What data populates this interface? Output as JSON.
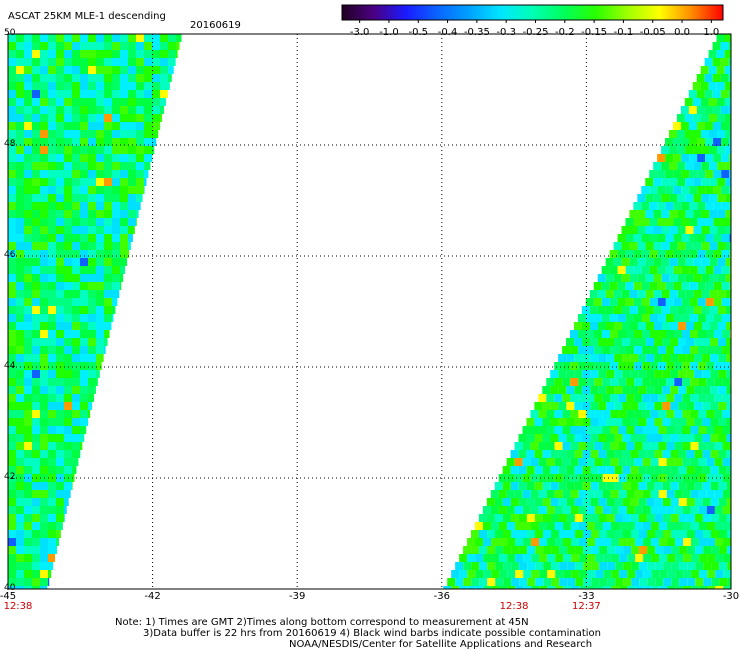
{
  "title": "ASCAT 25KM MLE-1 descending",
  "date": "20160619",
  "colorbar": {
    "labels": [
      "-3.0",
      "-1.0",
      "-0.5",
      "-0.4",
      "-0.35",
      "-0.3",
      "-0.25",
      "-0.2",
      "-0.15",
      "-0.1",
      "-0.05",
      "0.0",
      "1.0"
    ],
    "colors": [
      "#200020",
      "#4b0082",
      "#1a1aff",
      "#0a64ff",
      "#00a0ff",
      "#00e6ff",
      "#00ffb4",
      "#00ff5a",
      "#2aff00",
      "#a0ff00",
      "#ffff00",
      "#ff8c00",
      "#ff0000"
    ]
  },
  "axes": {
    "y_ticks": [
      "50",
      "48",
      "46",
      "44",
      "42",
      "40"
    ],
    "x_ticks": [
      "-45",
      "-42",
      "-39",
      "-36",
      "-33",
      "-30"
    ]
  },
  "time_labels": [
    {
      "text": "12:38",
      "lon": -45
    },
    {
      "text": "12:38",
      "lon": -34.5
    },
    {
      "text": "12:37",
      "lon": -33
    }
  ],
  "notes": {
    "line1": "Note: 1) Times are GMT 2)Times along bottom correspond to measurement at 45N",
    "line2": "3)Data buffer is 22 hrs from 20160619 4) Black wind barbs indicate possible contamination",
    "line3": "NOAA/NESDIS/Center for Satellite Applications and Research"
  },
  "chart_data": {
    "type": "heatmap",
    "title": "ASCAT 25KM MLE-1 descending",
    "xlim": [
      -45,
      -30
    ],
    "ylim": [
      40,
      50
    ],
    "grid": true,
    "swaths": [
      {
        "name": "west",
        "top_edge_lon": -41.4,
        "bottom_edge_lon": -44.2,
        "dominant_value": -0.2
      },
      {
        "name": "east",
        "top_edge_lon": -30.3,
        "bottom_edge_lon": -36.0,
        "dominant_value": -0.25
      }
    ]
  }
}
